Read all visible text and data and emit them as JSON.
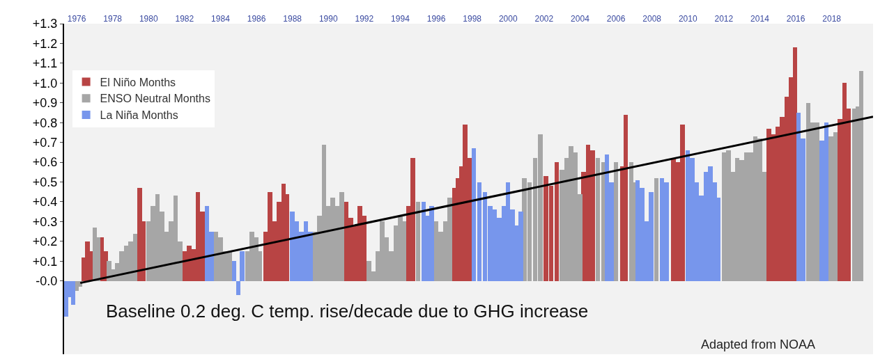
{
  "chart_data": {
    "type": "bar",
    "annotations": [
      "Baseline 0.2 deg. C temp. rise/decade due to GHG increase",
      "Adapted from NOAA"
    ],
    "xlim": [
      1975.3,
      2020.3
    ],
    "xticks": [
      1976,
      1978,
      1980,
      1982,
      1984,
      1986,
      1988,
      1990,
      1992,
      1994,
      1996,
      1998,
      2000,
      2002,
      2004,
      2006,
      2008,
      2010,
      2012,
      2014,
      2016,
      2018
    ],
    "ylim": [
      -0.37,
      1.3
    ],
    "yticks": [
      {
        "value": 0,
        "label": "-0.0"
      },
      {
        "value": 0.1,
        "label": "+0.1"
      },
      {
        "value": 0.2,
        "label": "+0.2"
      },
      {
        "value": 0.3,
        "label": "+0.3"
      },
      {
        "value": 0.4,
        "label": "+0.4"
      },
      {
        "value": 0.5,
        "label": "+0.5"
      },
      {
        "value": 0.6,
        "label": "+0.6"
      },
      {
        "value": 0.7,
        "label": "+0.7"
      },
      {
        "value": 0.8,
        "label": "+0.8"
      },
      {
        "value": 0.9,
        "label": "+0.9"
      },
      {
        "value": 1.0,
        "label": "+1.0"
      },
      {
        "value": 1.1,
        "label": "+1.1"
      },
      {
        "value": 1.2,
        "label": "+1.2"
      },
      {
        "value": 1.3,
        "label": "+1.3"
      }
    ],
    "legend": "top left",
    "series": [
      {
        "name": "El Niño Months",
        "color": "#b84444",
        "x": [
          1976.4,
          1976.6,
          1976.75,
          1977.4,
          1977.6,
          1979.5,
          1979.7,
          1982.0,
          1982.25,
          1982.5,
          1982.75,
          1983.0,
          1986.5,
          1986.75,
          1987.0,
          1987.25,
          1987.5,
          1987.7,
          1991.0,
          1991.25,
          1991.5,
          1991.75,
          1992.0,
          1994.45,
          1994.7,
          1997.0,
          1997.2,
          1997.4,
          1997.6,
          1997.85,
          2002.1,
          2002.4,
          2002.7,
          2004.2,
          2004.45,
          2004.7,
          2006.35,
          2006.55,
          2009.2,
          2009.45,
          2009.7,
          2014.5,
          2014.75,
          2015.0,
          2015.25,
          2015.5,
          2015.75,
          2015.95,
          2018.45,
          2018.7,
          2018.95
        ],
        "values": [
          0.12,
          0.2,
          0.15,
          0.22,
          0.15,
          0.47,
          0.3,
          0.15,
          0.18,
          0.16,
          0.45,
          0.35,
          0.25,
          0.45,
          0.3,
          0.4,
          0.49,
          0.44,
          0.4,
          0.32,
          0.28,
          0.38,
          0.33,
          0.38,
          0.62,
          0.47,
          0.52,
          0.58,
          0.79,
          0.62,
          0.53,
          0.48,
          0.6,
          0.55,
          0.69,
          0.66,
          0.58,
          0.84,
          0.62,
          0.6,
          0.79,
          0.77,
          0.74,
          0.78,
          0.83,
          0.93,
          1.03,
          1.18,
          0.82,
          1.0,
          0.87
        ]
      },
      {
        "name": "ENSO Neutral Months",
        "color": "#a6a6a6",
        "x": [
          1976.0,
          1976.2,
          1977.0,
          1977.2,
          1977.8,
          1978.0,
          1978.25,
          1978.5,
          1978.75,
          1979.0,
          1979.25,
          1980.0,
          1980.25,
          1980.5,
          1980.75,
          1981.0,
          1981.25,
          1981.5,
          1981.75,
          1983.75,
          1984.0,
          1984.25,
          1984.5,
          1985.5,
          1985.75,
          1986.0,
          1986.2,
          1989.25,
          1989.5,
          1989.75,
          1990.0,
          1990.25,
          1990.5,
          1990.75,
          1992.25,
          1992.5,
          1992.75,
          1993.0,
          1993.25,
          1993.5,
          1993.75,
          1994.0,
          1994.2,
          1995.0,
          1996.0,
          1996.25,
          1996.5,
          1996.75,
          2000.9,
          2001.2,
          2001.5,
          2001.8,
          2003.0,
          2003.25,
          2003.5,
          2003.75,
          2004.0,
          2005.0,
          2005.3,
          2006.0,
          2006.85,
          2007.0,
          2008.25,
          2012.0,
          2012.25,
          2012.5,
          2012.75,
          2013.0,
          2013.25,
          2013.5,
          2013.75,
          2014.0,
          2014.25,
          2016.7,
          2016.95,
          2017.2,
          2017.95,
          2018.2,
          2019.25,
          2019.45,
          2019.65
        ],
        "values": [
          -0.05,
          -0.03,
          0.27,
          0.22,
          0.1,
          0.06,
          0.09,
          0.15,
          0.18,
          0.2,
          0.24,
          0.3,
          0.38,
          0.44,
          0.35,
          0.25,
          0.3,
          0.43,
          0.2,
          0.25,
          0.22,
          0.15,
          0.15,
          0.15,
          0.25,
          0.22,
          0.15,
          0.25,
          0.33,
          0.69,
          0.38,
          0.42,
          0.38,
          0.45,
          0.1,
          0.05,
          0.15,
          0.3,
          0.22,
          0.15,
          0.28,
          0.33,
          0.3,
          0.4,
          0.3,
          0.25,
          0.3,
          0.42,
          0.52,
          0.5,
          0.62,
          0.74,
          0.56,
          0.62,
          0.68,
          0.65,
          0.44,
          0.62,
          0.6,
          0.6,
          0.6,
          0.5,
          0.52,
          0.65,
          0.66,
          0.55,
          0.62,
          0.61,
          0.65,
          0.65,
          0.73,
          0.72,
          0.55,
          0.9,
          0.8,
          0.8,
          0.73,
          0.75,
          0.87,
          0.88,
          1.06
        ]
      },
      {
        "name": "La Niña Months",
        "color": "#7796ec",
        "x": [
          1975.4,
          1975.6,
          1975.8,
          1983.25,
          1983.5,
          1984.75,
          1985.0,
          1985.2,
          1988.0,
          1988.25,
          1988.5,
          1988.75,
          1989.0,
          1995.3,
          1995.55,
          1995.75,
          1998.1,
          1998.4,
          1998.7,
          1999.0,
          1999.25,
          1999.5,
          1999.75,
          2000.0,
          2000.25,
          2000.5,
          2000.7,
          2005.5,
          2005.75,
          2007.2,
          2007.45,
          2007.7,
          2007.95,
          2008.55,
          2008.8,
          2010.0,
          2010.25,
          2010.5,
          2010.75,
          2011.0,
          2011.25,
          2011.5,
          2011.7,
          2016.15,
          2016.4,
          2017.45,
          2017.7
        ],
        "values": [
          -0.18,
          -0.08,
          -0.12,
          0.38,
          0.25,
          0.1,
          -0.07,
          0.15,
          0.35,
          0.3,
          0.25,
          0.3,
          0.25,
          0.4,
          0.33,
          0.38,
          0.67,
          0.5,
          0.45,
          0.38,
          0.36,
          0.32,
          0.38,
          0.5,
          0.36,
          0.28,
          0.35,
          0.64,
          0.5,
          0.51,
          0.47,
          0.3,
          0.45,
          0.52,
          0.5,
          0.66,
          0.62,
          0.5,
          0.43,
          0.55,
          0.58,
          0.5,
          0.42,
          0.85,
          0.72,
          0.71,
          0.8
        ]
      },
      {
        "type": "line",
        "color": "#000000",
        "x": [
          1976.2,
          2020.3
        ],
        "values": [
          -0.01,
          0.83
        ]
      }
    ]
  }
}
